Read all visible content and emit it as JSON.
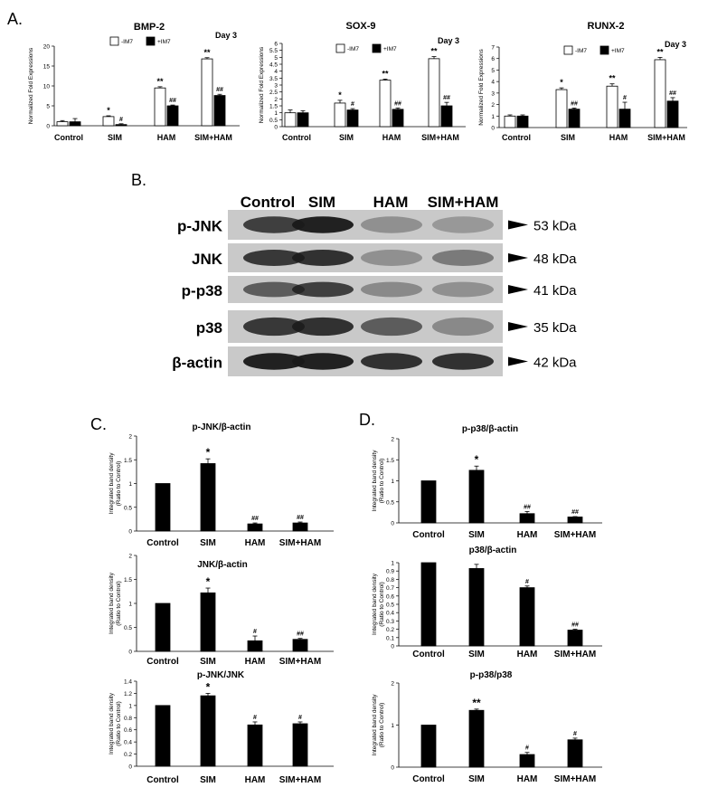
{
  "panel_labels": {
    "A": "A.",
    "B": "B.",
    "C": "C.",
    "D": "D."
  },
  "western_blot": {
    "lanes": [
      "Control",
      "SIM",
      "HAM",
      "SIM+HAM"
    ],
    "rows": [
      {
        "label": "p-JNK",
        "kda": "53 kDa",
        "intensity": [
          0.75,
          0.95,
          0.2,
          0.15
        ]
      },
      {
        "label": "JNK",
        "kda": "48 kDa",
        "intensity": [
          0.8,
          0.85,
          0.2,
          0.35
        ]
      },
      {
        "label": "p-p38",
        "kda": "41 kDa",
        "intensity": [
          0.55,
          0.75,
          0.25,
          0.2
        ]
      },
      {
        "label": "p38",
        "kda": "35 kDa",
        "intensity": [
          0.8,
          0.85,
          0.55,
          0.25
        ]
      },
      {
        "label": "β-actin",
        "kda": "42 kDa",
        "intensity": [
          0.95,
          0.95,
          0.85,
          0.85
        ]
      }
    ]
  },
  "chart_data": [
    {
      "panel": "A",
      "type": "bar",
      "title": "BMP-2",
      "subtitle": "Day 3",
      "ylabel": "Normalized Fold Expressions",
      "categories": [
        "Control",
        "SIM",
        "HAM",
        "SIM+HAM"
      ],
      "ylim": [
        0,
        20
      ],
      "yticks": [
        "0",
        "5",
        "10",
        "15",
        "20"
      ],
      "series": [
        {
          "name": "-IM7",
          "fill": "#ffffff",
          "values": [
            1,
            2.3,
            9.5,
            16.8
          ],
          "errors": [
            0.3,
            0.2,
            0.3,
            0.3
          ],
          "marks": [
            "",
            "*",
            "**",
            "**"
          ]
        },
        {
          "name": "+IM7",
          "fill": "#000000",
          "values": [
            1,
            0.3,
            5,
            7.6
          ],
          "errors": [
            0.8,
            0.2,
            0.2,
            0.3
          ],
          "marks": [
            "",
            "#",
            "##",
            "##"
          ]
        }
      ]
    },
    {
      "panel": "A",
      "type": "bar",
      "title": "SOX-9",
      "subtitle": "Day 3",
      "ylabel": "Normalized Fold Expressions",
      "categories": [
        "Control",
        "SIM",
        "HAM",
        "SIM+HAM"
      ],
      "ylim": [
        0,
        6
      ],
      "yticks": [
        "0",
        "0.5",
        "1",
        "1.5",
        "2",
        "2.5",
        "3",
        "3.5",
        "4",
        "4.5",
        "5",
        "5.5",
        "6"
      ],
      "series": [
        {
          "name": "-IM7",
          "fill": "#ffffff",
          "values": [
            1,
            1.7,
            3.35,
            4.9
          ],
          "errors": [
            0.2,
            0.2,
            0.08,
            0.15
          ],
          "marks": [
            "",
            "*",
            "**",
            "**"
          ]
        },
        {
          "name": "+IM7",
          "fill": "#000000",
          "values": [
            1,
            1.2,
            1.25,
            1.5
          ],
          "errors": [
            0.15,
            0.1,
            0.1,
            0.25
          ],
          "marks": [
            "",
            "#",
            "##",
            "##"
          ]
        }
      ]
    },
    {
      "panel": "A",
      "type": "bar",
      "title": "RUNX-2",
      "subtitle": "Day 3",
      "ylabel": "Normalized Fold Expressions",
      "categories": [
        "Control",
        "SIM",
        "HAM",
        "SIM+HAM"
      ],
      "ylim": [
        0,
        7
      ],
      "yticks": [
        "0",
        "1",
        "2",
        "3",
        "4",
        "5",
        "6",
        "7"
      ],
      "series": [
        {
          "name": "-IM7",
          "fill": "#ffffff",
          "values": [
            1,
            3.3,
            3.6,
            5.9
          ],
          "errors": [
            0.1,
            0.15,
            0.2,
            0.2
          ],
          "marks": [
            "",
            "*",
            "**",
            "**"
          ]
        },
        {
          "name": "+IM7",
          "fill": "#000000",
          "values": [
            1,
            1.6,
            1.6,
            2.3
          ],
          "errors": [
            0.1,
            0.1,
            0.6,
            0.3
          ],
          "marks": [
            "",
            "##",
            "#",
            "##"
          ]
        }
      ]
    },
    {
      "panel": "C",
      "type": "bar",
      "title": "p-JNK/β-actin",
      "ylabel": "Integrated band density",
      "ylabel2": "(Ratio to Control)",
      "categories": [
        "Control",
        "SIM",
        "HAM",
        "SIM+HAM"
      ],
      "ylim": [
        0,
        2
      ],
      "yticks": [
        "0",
        "0.5",
        "1",
        "1.5",
        "2"
      ],
      "series": [
        {
          "fill": "#000000",
          "values": [
            1,
            1.42,
            0.15,
            0.17
          ],
          "errors": [
            0,
            0.1,
            0.02,
            0.02
          ],
          "marks": [
            "",
            "*",
            "##",
            "##"
          ]
        }
      ]
    },
    {
      "panel": "C",
      "type": "bar",
      "title": "JNK/β-actin",
      "ylabel": "Integrated band density",
      "ylabel2": "(Ratio to Control)",
      "categories": [
        "Control",
        "SIM",
        "HAM",
        "SIM+HAM"
      ],
      "ylim": [
        0,
        2
      ],
      "yticks": [
        "0",
        "0.5",
        "1",
        "1.5",
        "2"
      ],
      "series": [
        {
          "fill": "#000000",
          "values": [
            1,
            1.22,
            0.22,
            0.25
          ],
          "errors": [
            0,
            0.1,
            0.1,
            0.02
          ],
          "marks": [
            "",
            "*",
            "#",
            "##"
          ]
        }
      ]
    },
    {
      "panel": "C",
      "type": "bar",
      "title": "p-JNK/JNK",
      "ylabel": "Integrated band density",
      "ylabel2": "(Ratio to Control)",
      "categories": [
        "Control",
        "SIM",
        "HAM",
        "SIM+HAM"
      ],
      "ylim": [
        0,
        1.4
      ],
      "yticks": [
        "0",
        "0.2",
        "0.4",
        "0.6",
        "0.8",
        "1",
        "1.2",
        "1.4"
      ],
      "series": [
        {
          "fill": "#000000",
          "values": [
            1,
            1.16,
            0.68,
            0.7
          ],
          "errors": [
            0,
            0.04,
            0.05,
            0.03
          ],
          "marks": [
            "",
            "*",
            "#",
            "#"
          ]
        }
      ]
    },
    {
      "panel": "D",
      "type": "bar",
      "title": "p-p38/β-actin",
      "ylabel": "Integrated band density",
      "ylabel2": "(Ratio to Control)",
      "categories": [
        "Control",
        "SIM",
        "HAM",
        "SIM+HAM"
      ],
      "ylim": [
        0,
        2
      ],
      "yticks": [
        "0",
        "0.5",
        "1",
        "1.5",
        "2"
      ],
      "series": [
        {
          "fill": "#000000",
          "values": [
            1,
            1.25,
            0.22,
            0.14
          ],
          "errors": [
            0,
            0.1,
            0.05,
            0.01
          ],
          "marks": [
            "",
            "*",
            "##",
            "##"
          ]
        }
      ]
    },
    {
      "panel": "D",
      "type": "bar",
      "title": "p38/β-actin",
      "ylabel": "Integrated band density",
      "ylabel2": "(Ratio to Control)",
      "categories": [
        "Control",
        "SIM",
        "HAM",
        "SIM+HAM"
      ],
      "ylim": [
        0,
        1
      ],
      "yticks": [
        "0",
        "0.1",
        "0.2",
        "0.3",
        "0.4",
        "0.5",
        "0.6",
        "0.7",
        "0.8",
        "0.9",
        "1"
      ],
      "series": [
        {
          "fill": "#000000",
          "values": [
            1,
            0.93,
            0.7,
            0.19
          ],
          "errors": [
            0,
            0.05,
            0.02,
            0.01
          ],
          "marks": [
            "",
            "",
            "#",
            "##"
          ]
        }
      ]
    },
    {
      "panel": "D",
      "type": "bar",
      "title": "p-p38/p38",
      "ylabel": "Integrated band density",
      "ylabel2": "(Ratio to Control)",
      "categories": [
        "Control",
        "SIM",
        "HAM",
        "SIM+HAM"
      ],
      "ylim": [
        0,
        2
      ],
      "yticks": [
        "0",
        "1",
        "2"
      ],
      "series": [
        {
          "fill": "#000000",
          "values": [
            1,
            1.35,
            0.3,
            0.65
          ],
          "errors": [
            0,
            0.03,
            0.05,
            0.04
          ],
          "marks": [
            "",
            "**",
            "#",
            "#"
          ]
        }
      ]
    }
  ]
}
